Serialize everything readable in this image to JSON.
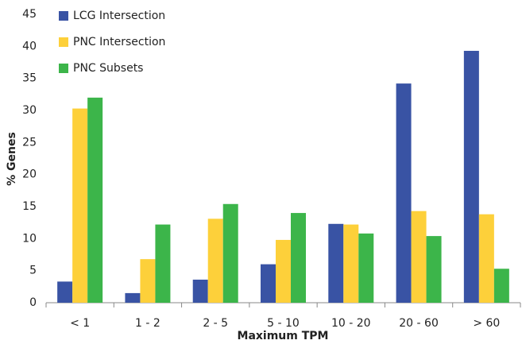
{
  "chart_data": {
    "type": "bar",
    "x_label": "Maximum TPM",
    "y_label": "% Genes",
    "categories": [
      "< 1",
      "1 - 2",
      "2 - 5",
      "5 - 10",
      "10 - 20",
      "20 - 60",
      "> 60"
    ],
    "series": [
      {
        "name": "LCG Intersection",
        "color": "#3953a4",
        "values": [
          3.3,
          1.5,
          3.6,
          6.0,
          12.3,
          34.2,
          39.3
        ]
      },
      {
        "name": "PNC Intersection",
        "color": "#fdd03a",
        "values": [
          30.3,
          6.8,
          13.1,
          9.8,
          12.2,
          14.3,
          13.8
        ]
      },
      {
        "name": "PNC Subsets",
        "color": "#3cb54a",
        "values": [
          32.0,
          12.2,
          15.4,
          14.0,
          10.8,
          10.4,
          5.3
        ]
      }
    ],
    "ylim": [
      0,
      45
    ],
    "yticks": [
      0,
      5,
      10,
      15,
      20,
      25,
      30,
      35,
      40,
      45
    ],
    "legend": "top-left",
    "grid": false
  }
}
